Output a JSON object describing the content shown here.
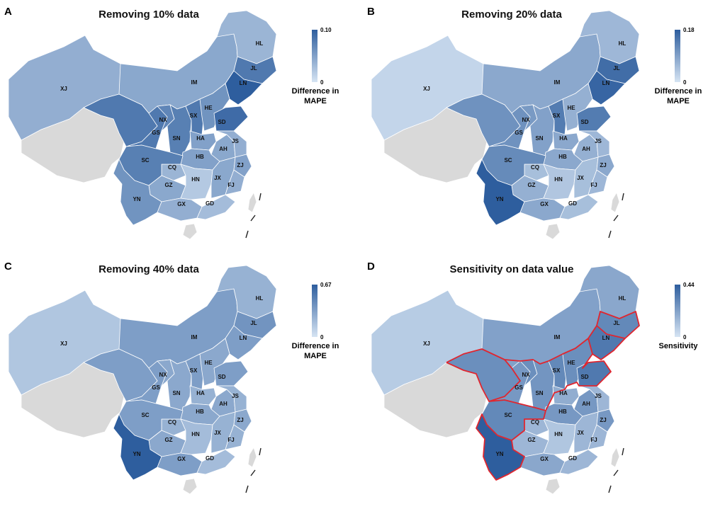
{
  "panels": [
    {
      "letter": "A",
      "title": "Removing 10% data",
      "legend": {
        "title_line1": "Difference in",
        "title_line2": "MAPE",
        "max_label": "0.10",
        "min_label": "0",
        "max": 0.1,
        "min": 0
      },
      "values": {
        "XJ": 0.04,
        "IM": 0.045,
        "HL": 0.035,
        "JL": 0.08,
        "LN": 0.1,
        "GS": 0.08,
        "NX": 0.07,
        "SN": 0.075,
        "SX": 0.08,
        "HE": 0.06,
        "SD": 0.09,
        "HA": 0.05,
        "AH": 0.045,
        "JS": 0.04,
        "HB": 0.05,
        "CQ": 0.035,
        "SC": 0.075,
        "GZ": 0.045,
        "YN": 0.06,
        "GX": 0.04,
        "GD": 0.03,
        "HN": 0.02,
        "JX": 0.045,
        "FJ": 0.04,
        "ZJ": 0.05,
        "QH": 0.08
      }
    },
    {
      "letter": "B",
      "title": "Removing 20% data",
      "legend": {
        "title_line1": "Difference in",
        "title_line2": "MAPE",
        "max_label": "0.18",
        "min_label": "0",
        "max": 0.18,
        "min": 0
      },
      "values": {
        "XJ": 0.02,
        "IM": 0.08,
        "HL": 0.06,
        "JL": 0.16,
        "LN": 0.17,
        "GS": 0.11,
        "NX": 0.1,
        "SN": 0.09,
        "SX": 0.14,
        "HE": 0.07,
        "SD": 0.14,
        "HA": 0.08,
        "AH": 0.07,
        "JS": 0.06,
        "HB": 0.08,
        "CQ": 0.05,
        "SC": 0.12,
        "GZ": 0.07,
        "YN": 0.18,
        "GX": 0.08,
        "GD": 0.05,
        "HN": 0.04,
        "JX": 0.05,
        "FJ": 0.06,
        "ZJ": 0.08,
        "QH": 0.11
      }
    },
    {
      "letter": "C",
      "title": "Removing 40% data",
      "legend": {
        "title_line1": "Difference in",
        "title_line2": "MAPE",
        "max_label": "0.67",
        "min_label": "0",
        "max": 0.67,
        "min": 0
      },
      "values": {
        "XJ": 0.15,
        "IM": 0.35,
        "HL": 0.25,
        "JL": 0.4,
        "LN": 0.35,
        "GS": 0.35,
        "NX": 0.3,
        "SN": 0.3,
        "SX": 0.35,
        "HE": 0.3,
        "SD": 0.35,
        "HA": 0.25,
        "AH": 0.3,
        "JS": 0.25,
        "HB": 0.3,
        "CQ": 0.25,
        "SC": 0.35,
        "GZ": 0.3,
        "YN": 0.67,
        "GX": 0.35,
        "GD": 0.2,
        "HN": 0.2,
        "JX": 0.25,
        "FJ": 0.25,
        "ZJ": 0.3,
        "QH": 0.35
      }
    },
    {
      "letter": "D",
      "title": "Sensitivity on data value",
      "legend": {
        "title_line1": "Sensitivity",
        "title_line2": "",
        "max_label": "0.44",
        "min_label": "0",
        "max": 0.44,
        "min": 0
      },
      "highlight": [
        "QH",
        "GS",
        "SC",
        "YN",
        "NX",
        "SN",
        "SX",
        "HE",
        "SD",
        "JL",
        "LN"
      ],
      "values": {
        "XJ": 0.08,
        "IM": 0.22,
        "HL": 0.2,
        "JL": 0.3,
        "LN": 0.35,
        "GS": 0.25,
        "NX": 0.28,
        "SN": 0.26,
        "SX": 0.3,
        "HE": 0.28,
        "SD": 0.35,
        "HA": 0.18,
        "AH": 0.25,
        "JS": 0.15,
        "HB": 0.25,
        "CQ": 0.15,
        "SC": 0.3,
        "GZ": 0.15,
        "YN": 0.44,
        "GX": 0.2,
        "GD": 0.15,
        "HN": 0.1,
        "JX": 0.15,
        "FJ": 0.15,
        "ZJ": 0.25,
        "QH": 0.28
      }
    }
  ],
  "colors": {
    "low": "#d6e4f3",
    "high": "#2e5e9e",
    "nodata": "#d9d9d9",
    "border": "#ffffff",
    "highlight": "#e0262f"
  },
  "no_data_regions": [
    "XZ",
    "TW",
    "HI"
  ],
  "province_labels": [
    "XJ",
    "IM",
    "HL",
    "JL",
    "LN",
    "GS",
    "NX",
    "SN",
    "SX",
    "HE",
    "SD",
    "HA",
    "AH",
    "JS",
    "HB",
    "CQ",
    "SC",
    "GZ",
    "YN",
    "GX",
    "GD",
    "HN",
    "JX",
    "FJ",
    "ZJ"
  ]
}
